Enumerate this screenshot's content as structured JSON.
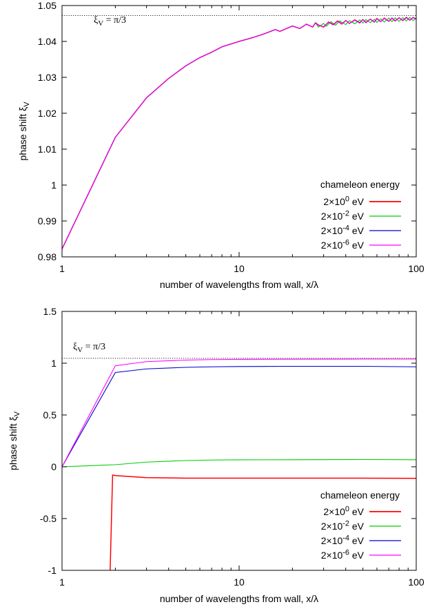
{
  "chart_data": [
    {
      "type": "line",
      "xlabel": "number of wavelengths from wall, x/λ",
      "ylabel": "phase shift ξ_V",
      "xscale": "log",
      "xlim": [
        1,
        100
      ],
      "ylim": [
        0.98,
        1.05
      ],
      "xticks": [
        {
          "v": 1,
          "label": "1"
        },
        {
          "v": 10,
          "label": "10"
        },
        {
          "v": 100,
          "label": "100"
        }
      ],
      "yticks": [
        {
          "v": 0.98,
          "label": "0.98"
        },
        {
          "v": 0.99,
          "label": "0.99"
        },
        {
          "v": 1.0,
          "label": "1"
        },
        {
          "v": 1.01,
          "label": "1.01"
        },
        {
          "v": 1.02,
          "label": "1.02"
        },
        {
          "v": 1.03,
          "label": "1.03"
        },
        {
          "v": 1.04,
          "label": "1.04"
        },
        {
          "v": 1.05,
          "label": "1.05"
        }
      ],
      "reference_line": {
        "value": 1.0472,
        "label": "ξ_V = π/3"
      },
      "legend": {
        "title": "chameleon energy",
        "placement": "bottom-right"
      },
      "series": [
        {
          "name": "2×10^0 eV",
          "color": "#ff0000",
          "x": [
            1,
            2,
            3,
            4,
            5,
            6,
            7,
            8,
            10,
            12,
            14,
            16,
            17,
            20,
            22,
            24,
            26,
            27,
            28,
            30,
            32,
            34,
            36,
            38,
            40,
            42,
            45,
            48,
            50,
            52,
            55,
            58,
            60,
            63,
            66,
            70,
            73,
            76,
            80,
            84,
            88,
            92,
            96,
            100
          ],
          "y": [
            0.9822,
            1.0133,
            1.0243,
            1.0297,
            1.0332,
            1.0355,
            1.037,
            1.0385,
            1.04,
            1.0411,
            1.0422,
            1.0433,
            1.0428,
            1.0443,
            1.0436,
            1.0448,
            1.044,
            1.0452,
            1.0446,
            1.044,
            1.0454,
            1.0447,
            1.0457,
            1.0449,
            1.0458,
            1.045,
            1.046,
            1.0452,
            1.0461,
            1.0453,
            1.0462,
            1.0454,
            1.0464,
            1.0455,
            1.0465,
            1.0456,
            1.0465,
            1.0457,
            1.0466,
            1.0458,
            1.0467,
            1.0459,
            1.0467,
            1.0462
          ]
        },
        {
          "name": "2×10^-2 eV",
          "color": "#00cc00",
          "x": [
            1,
            2,
            3,
            4,
            5,
            6,
            7,
            8,
            10,
            12,
            14,
            16,
            17,
            20,
            22,
            24,
            26,
            27,
            28,
            30,
            31,
            33,
            35,
            37,
            40,
            42,
            45,
            48,
            50,
            52,
            55,
            58,
            60,
            63,
            66,
            70,
            73,
            76,
            80,
            84,
            88,
            92,
            96,
            100
          ],
          "y": [
            0.9822,
            1.0133,
            1.0243,
            1.0297,
            1.0332,
            1.0355,
            1.037,
            1.0385,
            1.04,
            1.0411,
            1.0422,
            1.0433,
            1.0428,
            1.0443,
            1.0436,
            1.0448,
            1.044,
            1.0452,
            1.044,
            1.045,
            1.0442,
            1.0455,
            1.0445,
            1.0457,
            1.0447,
            1.0458,
            1.0449,
            1.046,
            1.0451,
            1.0461,
            1.0452,
            1.0462,
            1.0453,
            1.0463,
            1.0454,
            1.0465,
            1.0455,
            1.0466,
            1.0456,
            1.0466,
            1.0457,
            1.0467,
            1.0458,
            1.0466
          ]
        },
        {
          "name": "2×10^-4 eV",
          "color": "#0000cc",
          "x": [
            1,
            2,
            3,
            4,
            5,
            6,
            7,
            8,
            10,
            12,
            14,
            16,
            17,
            20,
            22,
            24,
            26,
            27,
            28,
            30,
            32,
            34,
            36,
            38,
            40,
            42,
            45,
            48,
            50,
            52,
            55,
            58,
            60,
            63,
            66,
            70,
            73,
            76,
            80,
            84,
            88,
            92,
            96,
            100
          ],
          "y": [
            0.9822,
            1.0133,
            1.0243,
            1.0297,
            1.0332,
            1.0355,
            1.037,
            1.0385,
            1.04,
            1.0411,
            1.0422,
            1.0433,
            1.0428,
            1.0443,
            1.0436,
            1.0448,
            1.044,
            1.0451,
            1.0445,
            1.0441,
            1.0453,
            1.0446,
            1.0456,
            1.0448,
            1.0458,
            1.045,
            1.0459,
            1.0451,
            1.0461,
            1.0452,
            1.0462,
            1.0454,
            1.0463,
            1.0455,
            1.0464,
            1.0456,
            1.0465,
            1.0457,
            1.0466,
            1.0458,
            1.0466,
            1.0459,
            1.0467,
            1.0461
          ]
        },
        {
          "name": "2×10^-6 eV",
          "color": "#ff00ff",
          "x": [
            1,
            2,
            3,
            4,
            5,
            6,
            7,
            8,
            10,
            12,
            14,
            16,
            17,
            20,
            22,
            24,
            26,
            27,
            28,
            30,
            32,
            34,
            36,
            38,
            40,
            42,
            45,
            48,
            50,
            52,
            55,
            58,
            60,
            63,
            66,
            70,
            73,
            76,
            80,
            84,
            88,
            92,
            96,
            100
          ],
          "y": [
            0.9822,
            1.0133,
            1.0243,
            1.0297,
            1.0332,
            1.0355,
            1.037,
            1.0385,
            1.04,
            1.0411,
            1.0422,
            1.0433,
            1.0428,
            1.0443,
            1.0436,
            1.0448,
            1.044,
            1.0451,
            1.0445,
            1.0441,
            1.0453,
            1.0446,
            1.0456,
            1.0448,
            1.0458,
            1.045,
            1.0459,
            1.0451,
            1.0461,
            1.0452,
            1.0462,
            1.0454,
            1.0463,
            1.0455,
            1.0464,
            1.0456,
            1.0465,
            1.0457,
            1.0466,
            1.0458,
            1.0466,
            1.0459,
            1.0467,
            1.0462
          ]
        }
      ]
    },
    {
      "type": "line",
      "xlabel": "number of wavelengths from wall, x/λ",
      "ylabel": "phase shift ξ_V",
      "xscale": "log",
      "xlim": [
        1,
        100
      ],
      "ylim": [
        -1,
        1.5
      ],
      "xticks": [
        {
          "v": 1,
          "label": "1"
        },
        {
          "v": 10,
          "label": "10"
        },
        {
          "v": 100,
          "label": "100"
        }
      ],
      "yticks": [
        {
          "v": -1,
          "label": "-1"
        },
        {
          "v": -0.5,
          "label": "-0.5"
        },
        {
          "v": 0,
          "label": "0"
        },
        {
          "v": 0.5,
          "label": "0.5"
        },
        {
          "v": 1,
          "label": "1"
        },
        {
          "v": 1.5,
          "label": "1.5"
        }
      ],
      "reference_line": {
        "value": 1.0472,
        "label": "ξ_V = π/3"
      },
      "legend": {
        "title": "chameleon energy",
        "placement": "bottom-right"
      },
      "series": [
        {
          "name": "2×10^0 eV",
          "color": "#ff0000",
          "x": [
            1.87,
            1.93,
            2,
            3,
            5,
            10,
            20,
            50,
            100
          ],
          "y": [
            -1.0,
            -0.08,
            -0.085,
            -0.105,
            -0.11,
            -0.11,
            -0.11,
            -0.11,
            -0.112
          ]
        },
        {
          "name": "2×10^-2 eV",
          "color": "#00cc00",
          "x": [
            1,
            2,
            3,
            5,
            7,
            10,
            20,
            50,
            100
          ],
          "y": [
            0.0,
            0.02,
            0.045,
            0.06,
            0.065,
            0.067,
            0.068,
            0.07,
            0.068
          ]
        },
        {
          "name": "2×10^-4 eV",
          "color": "#0000cc",
          "x": [
            1,
            2,
            3,
            5,
            7,
            10,
            20,
            50,
            100
          ],
          "y": [
            0.0,
            0.91,
            0.945,
            0.96,
            0.965,
            0.968,
            0.97,
            0.97,
            0.965
          ]
        },
        {
          "name": "2×10^-6 eV",
          "color": "#ff00ff",
          "x": [
            1,
            2,
            3,
            5,
            7,
            10,
            20,
            50,
            100
          ],
          "y": [
            0.0,
            0.975,
            1.015,
            1.03,
            1.035,
            1.037,
            1.039,
            1.04,
            1.04
          ]
        }
      ]
    }
  ]
}
